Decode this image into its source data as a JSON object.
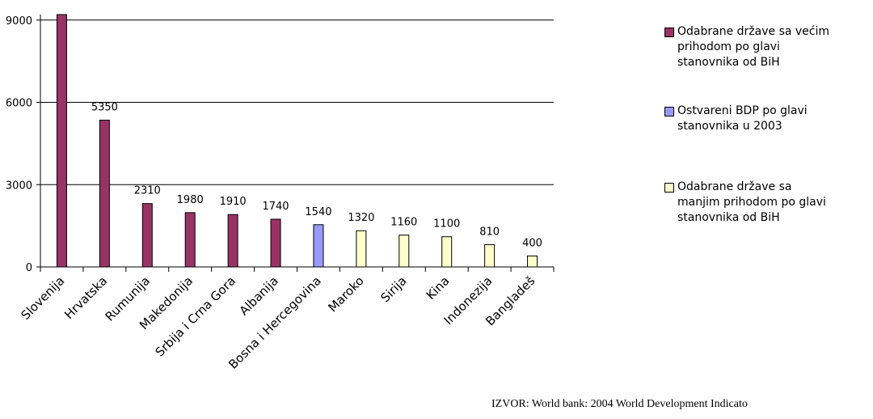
{
  "chart_data": {
    "type": "bar",
    "categories": [
      "Slovenija",
      "Hrvatska",
      "Rumunija",
      "Makedonija",
      "Srbija i Crna Gora",
      "Albanija",
      "Bosna i Hercegovina",
      "Maroko",
      "Sirija",
      "Kina",
      "Indonezija",
      "Bangladeš"
    ],
    "series": [
      {
        "name": "Odabrane države sa većim prihodom po glavi stanovnika od BiH",
        "color": "#993366",
        "values": [
          9200,
          5350,
          2310,
          1980,
          1910,
          1740,
          null,
          null,
          null,
          null,
          null,
          null
        ]
      },
      {
        "name": "Ostvareni BDP po glavi stanovnika u 2003",
        "color": "#9999ff",
        "values": [
          null,
          null,
          null,
          null,
          null,
          null,
          1540,
          null,
          null,
          null,
          null,
          null
        ]
      },
      {
        "name": "Odabrane države sa manjim prihodom po glavi stanovnika od BiH",
        "color": "#ffffcc",
        "values": [
          null,
          null,
          null,
          null,
          null,
          null,
          null,
          1320,
          1160,
          1100,
          810,
          400
        ]
      }
    ],
    "ylim": [
      0,
      9200
    ],
    "yticks": [
      0,
      3000,
      6000,
      9000
    ],
    "grid": true,
    "source": "IZVOR: World bank: 2004 World Development Indicato"
  }
}
